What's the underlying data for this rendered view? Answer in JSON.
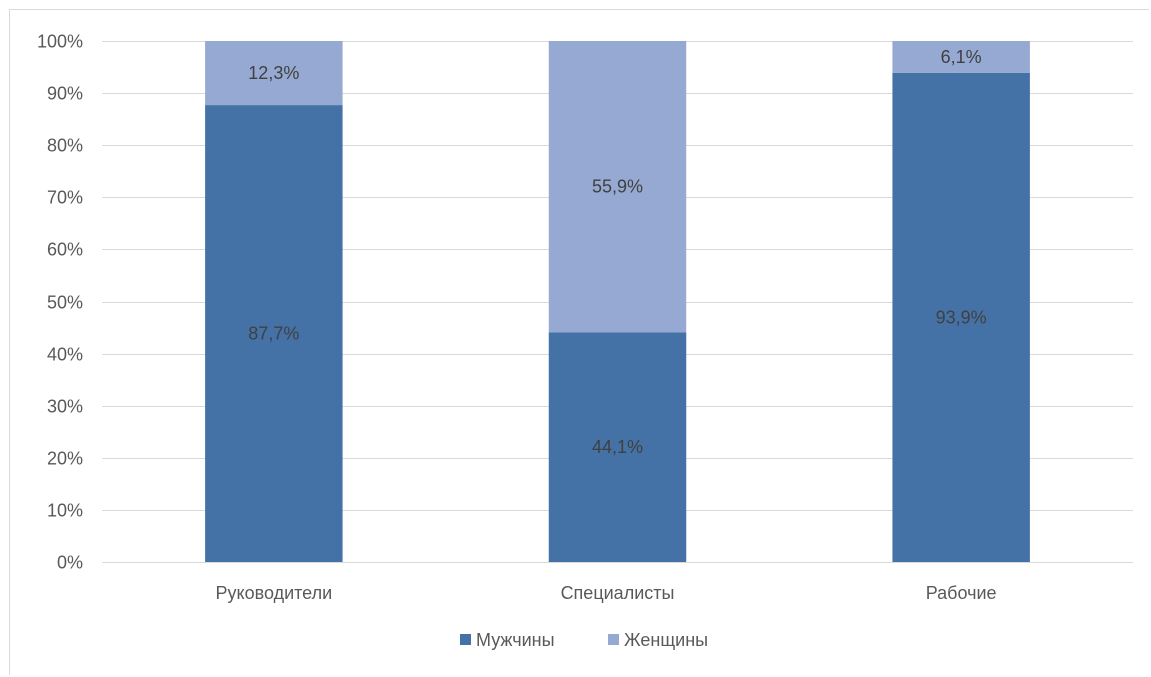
{
  "chart_data": {
    "type": "bar",
    "stacked": true,
    "normalized": true,
    "title": "",
    "xlabel": "",
    "ylabel": "",
    "ylim": [
      0,
      100
    ],
    "y_ticks": [
      "0%",
      "10%",
      "20%",
      "30%",
      "40%",
      "50%",
      "60%",
      "70%",
      "80%",
      "90%",
      "100%"
    ],
    "categories": [
      "Руководители",
      "Специалисты",
      "Рабочие"
    ],
    "series": [
      {
        "name": "Мужчины",
        "color": "#4472a6",
        "values": [
          87.7,
          44.1,
          93.9
        ],
        "labels": [
          "87,7%",
          "44,1%",
          "93,9%"
        ]
      },
      {
        "name": "Женщины",
        "color": "#95a9d2",
        "values": [
          12.3,
          55.9,
          6.1
        ],
        "labels": [
          "12,3%",
          "55,9%",
          "6,1%"
        ]
      }
    ],
    "grid": true,
    "legend_position": "bottom"
  }
}
